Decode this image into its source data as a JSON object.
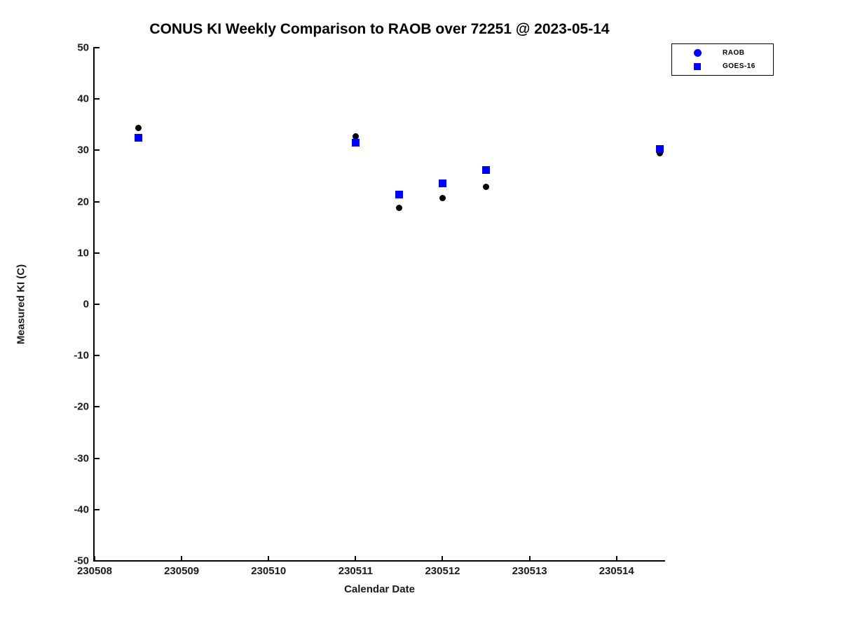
{
  "title": "CONUS KI Weekly Comparison to RAOB over 72251 @ 2023-05-14",
  "chart_data": {
    "type": "scatter",
    "title": "CONUS KI Weekly Comparison to RAOB over 72251 @ 2023-05-14",
    "xlabel": "Calendar Date",
    "ylabel": "Measured KI (C)",
    "xlim": [
      230508,
      230514.55
    ],
    "ylim": [
      -50,
      50
    ],
    "x_ticks": [
      230508,
      230509,
      230510,
      230511,
      230512,
      230513,
      230514
    ],
    "y_ticks": [
      50,
      40,
      30,
      20,
      10,
      0,
      -10,
      -20,
      -30,
      -40,
      -50
    ],
    "grid": false,
    "legend_position": "top-right",
    "series": [
      {
        "name": "RAOB",
        "marker": "circle",
        "marker_size": 9,
        "marker_color": "#000000",
        "legend_marker_color": "#0000ff",
        "legend_marker_size": 11,
        "points": [
          {
            "x": 230508.5,
            "y": 34.3
          },
          {
            "x": 230511.0,
            "y": 32.7
          },
          {
            "x": 230511.5,
            "y": 18.8
          },
          {
            "x": 230512.0,
            "y": 20.7
          },
          {
            "x": 230512.5,
            "y": 22.9
          },
          {
            "x": 230514.5,
            "y": 29.4
          }
        ]
      },
      {
        "name": "GOES-16",
        "marker": "square",
        "marker_size": 11,
        "marker_color": "#0000ff",
        "legend_marker_color": "#0000ff",
        "legend_marker_size": 10,
        "points": [
          {
            "x": 230508.5,
            "y": 32.4
          },
          {
            "x": 230511.0,
            "y": 31.5
          },
          {
            "x": 230511.5,
            "y": 21.4
          },
          {
            "x": 230512.0,
            "y": 23.6
          },
          {
            "x": 230512.5,
            "y": 26.1
          },
          {
            "x": 230514.5,
            "y": 30.3
          }
        ]
      }
    ]
  },
  "colors": {
    "marker_blue": "#0000ff",
    "marker_black": "#000000",
    "axis": "#000000",
    "tick_text": "#1a1a1a",
    "background": "#ffffff"
  }
}
